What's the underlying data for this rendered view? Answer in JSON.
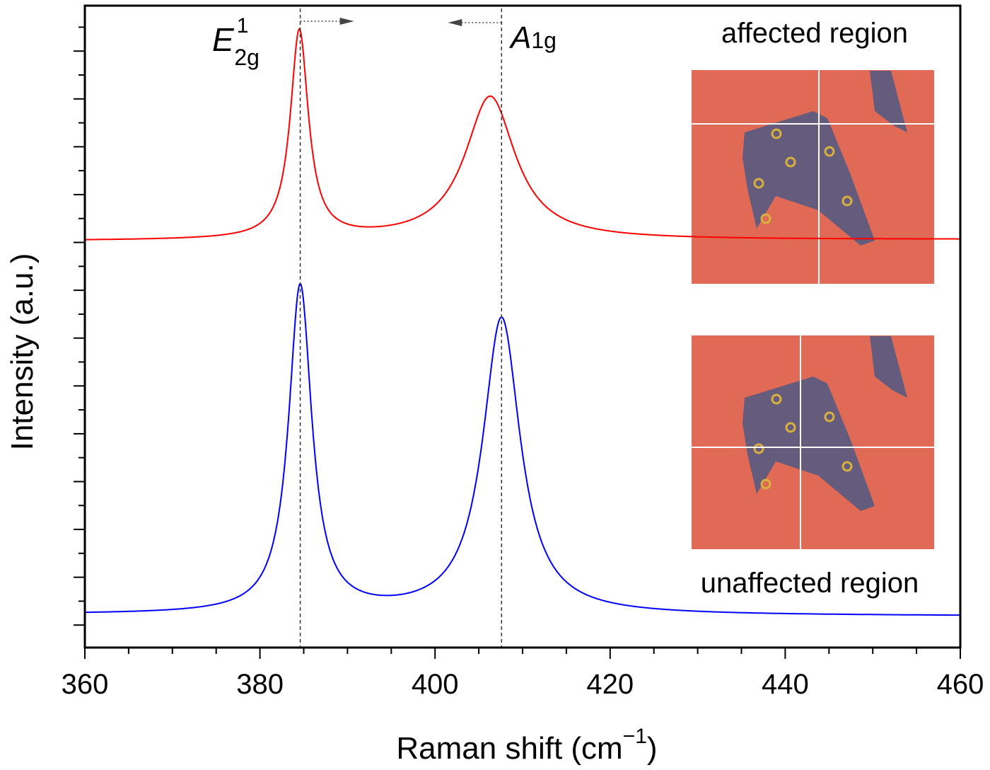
{
  "chart_data": {
    "type": "line",
    "xlabel": "Raman shift (cm",
    "xlabel_superscript": "−1",
    "xlabel_close": ")",
    "ylabel": "Intensity (a.u.)",
    "xlim": [
      360,
      460
    ],
    "ylim": [
      -0.47,
      12.95
    ],
    "x_ticks": [
      360,
      380,
      400,
      420,
      440,
      460
    ],
    "x_minor_step": 5,
    "y_tick_labels": false,
    "y_major_step": 1,
    "grid": false,
    "legend": "none",
    "series": [
      {
        "id": "affected",
        "color": "#ff0000",
        "model": "lorentzian",
        "baseline": 8.03,
        "baseline_slope_per_cm": 0.0003,
        "peaks": [
          {
            "center": 384.5,
            "hwhm": 1.25,
            "height": 4.35
          },
          {
            "center": 406.3,
            "hwhm": 3.5,
            "height": 3.0
          }
        ]
      },
      {
        "id": "unaffected",
        "color": "#0000ff",
        "model": "lorentzian",
        "baseline": 0.22,
        "baseline_slope_per_cm": -0.0003,
        "peaks": [
          {
            "center": 384.6,
            "hwhm": 1.6,
            "height": 6.85
          },
          {
            "center": 407.6,
            "hwhm": 2.6,
            "height": 6.2
          }
        ]
      }
    ],
    "reference_lines": [
      384.6,
      407.6
    ],
    "annotations": {
      "e2g_main": "E",
      "e2g_sup": "1",
      "e2g_sub": "2g",
      "a1g_main": "A",
      "a1g_sub": "1g",
      "affected_label": "affected region",
      "unaffected_label": "unaffected region"
    },
    "inset_colors": {
      "substrate": "#e06a55",
      "flake": "#5a5a80",
      "crosshair": "#ffffff"
    }
  }
}
